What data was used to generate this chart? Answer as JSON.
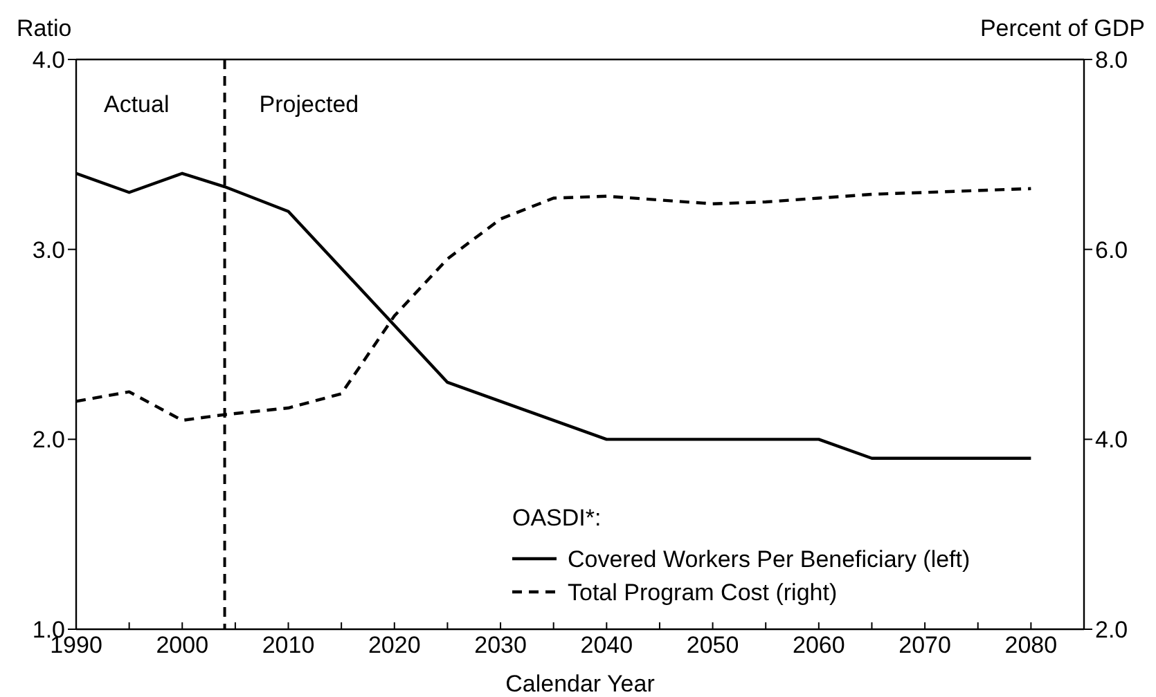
{
  "chart_data": {
    "type": "line",
    "xlabel": "Calendar Year",
    "ylabel": "Ratio",
    "y2label": "Percent of GDP",
    "legend_title": "OASDI*:",
    "legend": "bottom right",
    "grid": false,
    "xlim": [
      1990,
      2085
    ],
    "xticks": [
      1990,
      {
        "value": 1995,
        "label": null
      },
      2000,
      {
        "value": 2005,
        "label": null
      },
      2010,
      {
        "value": 2015,
        "label": null
      },
      2020,
      {
        "value": 2025,
        "label": null
      },
      2030,
      {
        "value": 2035,
        "label": null
      },
      2040,
      {
        "value": 2045,
        "label": null
      },
      2050,
      {
        "value": 2055,
        "label": null
      },
      2060,
      {
        "value": 2065,
        "label": null
      },
      2070,
      {
        "value": 2075,
        "label": null
      },
      2080
    ],
    "ylim": [
      1,
      4
    ],
    "yticks": [
      {
        "value": 1,
        "label": "1.0"
      },
      {
        "value": 2,
        "label": "2.0"
      },
      {
        "value": 3,
        "label": "3.0"
      },
      {
        "value": 4,
        "label": "4.0"
      }
    ],
    "y2lim": [
      2,
      8
    ],
    "y2ticks": [
      {
        "value": 2,
        "label": "2.0"
      },
      {
        "value": 4,
        "label": "4.0"
      },
      {
        "value": 6,
        "label": "6.0"
      },
      {
        "value": 8,
        "label": "8.0"
      }
    ],
    "ref_lines": [
      {
        "axis": "x",
        "value": 2004,
        "line_style": "dashed",
        "color": "#000000"
      }
    ],
    "annotations": [
      "Actual",
      "Projected"
    ],
    "series": [
      {
        "name": "Covered Workers Per Beneficiary (left)",
        "color": "#000000",
        "line_style": "solid",
        "axis": "y",
        "x": [
          1990,
          1995,
          2000,
          2004,
          2010,
          2025,
          2040,
          2060,
          2065,
          2080
        ],
        "values": [
          3.4,
          3.3,
          3.4,
          3.33,
          3.2,
          2.3,
          2.0,
          2.0,
          1.9,
          1.9
        ]
      },
      {
        "name": "Total Program Cost (right)",
        "color": "#000000",
        "line_style": "dashed",
        "axis": "y2",
        "x": [
          1990,
          1995,
          2000,
          2004,
          2010,
          2015,
          2020,
          2025,
          2030,
          2035,
          2040,
          2045,
          2050,
          2055,
          2060,
          2065,
          2070,
          2075,
          2080
        ],
        "values": [
          4.4,
          4.5,
          4.2,
          4.26,
          4.33,
          4.48,
          5.3,
          5.9,
          6.32,
          6.54,
          6.56,
          6.52,
          6.48,
          6.5,
          6.54,
          6.58,
          6.6,
          6.62,
          6.64
        ]
      }
    ]
  }
}
